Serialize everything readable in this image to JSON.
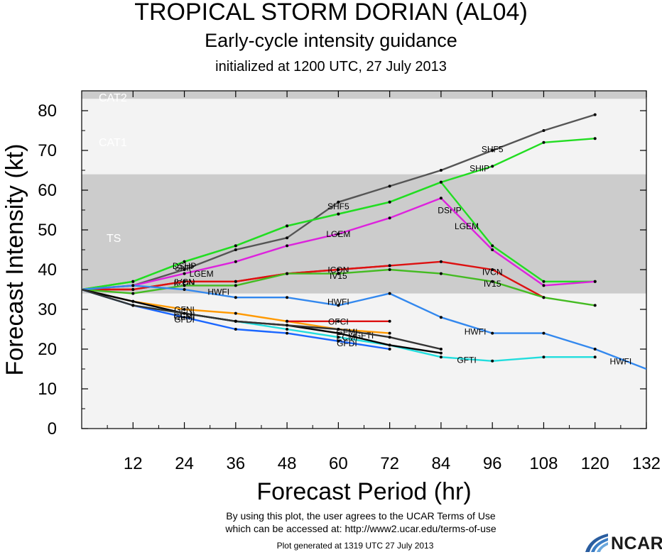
{
  "header": {
    "title": "TROPICAL STORM DORIAN (AL04)",
    "subtitle": "Early-cycle intensity guidance",
    "init": "initialized at 1200 UTC, 27 July 2013"
  },
  "footer": {
    "terms_line1": "By using this plot, the user agrees to the UCAR Terms of Use",
    "terms_line2": "which can be accessed at: http://www2.ucar.edu/terms-of-use",
    "generated": "Plot generated at 1319 UTC   27 July 2013",
    "logo_text": "NCAR"
  },
  "chart_data": {
    "type": "line",
    "title": "TROPICAL STORM DORIAN (AL04)",
    "xlabel": "Forecast Period (hr)",
    "ylabel": "Forecast Intensity (kt)",
    "xlim": [
      0,
      132
    ],
    "ylim": [
      0,
      85
    ],
    "xticks": [
      12,
      24,
      36,
      48,
      60,
      72,
      84,
      96,
      108,
      120,
      132
    ],
    "yticks": [
      0,
      10,
      20,
      30,
      40,
      50,
      60,
      70,
      80
    ],
    "bands": [
      {
        "name": "TS",
        "from": 34,
        "to": 64,
        "color": "#cccccc"
      },
      {
        "name": "CAT1",
        "from": 64,
        "to": 83,
        "color": "#f3f3f3"
      },
      {
        "name": "CAT2",
        "from": 83,
        "to": 85,
        "color": "#cccccc"
      }
    ],
    "series": [
      {
        "name": "SHF5",
        "color": "#555555",
        "x": [
          0,
          12,
          24,
          36,
          48,
          60,
          72,
          84,
          96,
          108,
          120
        ],
        "y": [
          35,
          36,
          40,
          45,
          48,
          57,
          61,
          65,
          70,
          75,
          79
        ]
      },
      {
        "name": "SHIP",
        "color": "#22dd22",
        "x": [
          0,
          12,
          24,
          36,
          48,
          60,
          72,
          84,
          96,
          108,
          120
        ],
        "y": [
          35,
          37,
          42,
          46,
          51,
          54,
          57,
          62,
          66,
          72,
          73
        ]
      },
      {
        "name": "DSHP",
        "color": "#22dd22",
        "x": [
          0,
          12,
          24,
          36,
          48,
          60,
          72,
          84,
          96,
          108,
          120
        ],
        "y": [
          35,
          37,
          42,
          46,
          51,
          54,
          57,
          62,
          46,
          37,
          37
        ]
      },
      {
        "name": "LGEM",
        "color": "#dd22dd",
        "x": [
          0,
          12,
          24,
          36,
          48,
          60,
          72,
          84,
          96,
          108,
          120
        ],
        "y": [
          35,
          36,
          39,
          42,
          46,
          49,
          53,
          58,
          45,
          36,
          37
        ]
      },
      {
        "name": "IVCN",
        "color": "#dd1111",
        "x": [
          0,
          12,
          24,
          36,
          48,
          60,
          72,
          84,
          96,
          108
        ],
        "y": [
          35,
          35,
          37,
          37,
          39,
          40,
          41,
          42,
          40,
          33
        ]
      },
      {
        "name": "ICON",
        "color": "#dd1111",
        "x": [
          0,
          12,
          24,
          36,
          48,
          60,
          72
        ],
        "y": [
          35,
          35,
          37,
          37,
          39,
          40,
          41
        ]
      },
      {
        "name": "IV15",
        "color": "#44bb22",
        "x": [
          0,
          12,
          24,
          36,
          48,
          60,
          72,
          84,
          96,
          108,
          120
        ],
        "y": [
          35,
          34,
          36,
          36,
          39,
          39,
          40,
          39,
          37,
          33,
          31
        ]
      },
      {
        "name": "HWFI",
        "color": "#3388ee",
        "x": [
          0,
          12,
          24,
          36,
          48,
          60,
          72,
          84,
          96,
          108,
          120,
          132
        ],
        "y": [
          35,
          36,
          35,
          33,
          33,
          31,
          34,
          28,
          24,
          24,
          20,
          15
        ]
      },
      {
        "name": "GFNI",
        "color": "#ff9900",
        "x": [
          0,
          12,
          24,
          36,
          48,
          60,
          72
        ],
        "y": [
          35,
          32,
          30,
          29,
          27,
          25,
          24
        ]
      },
      {
        "name": "OFCI",
        "color": "#dd1111",
        "x": [
          48,
          60,
          72
        ],
        "y": [
          27,
          27,
          27
        ]
      },
      {
        "name": "GFTI",
        "color": "#22dddd",
        "x": [
          0,
          12,
          24,
          36,
          48,
          60,
          72,
          84,
          96,
          108,
          120
        ],
        "y": [
          35,
          31,
          29,
          27,
          25,
          23,
          21,
          18,
          17,
          18,
          18
        ]
      },
      {
        "name": "GFDI",
        "color": "#1a66ff",
        "x": [
          0,
          12,
          24,
          36,
          48,
          60,
          72
        ],
        "y": [
          35,
          31,
          28,
          25,
          24,
          22,
          20
        ]
      },
      {
        "name": "ECMI",
        "color": "#000000",
        "x": [
          0,
          12,
          24,
          36,
          48,
          60,
          72,
          84
        ],
        "y": [
          35,
          32,
          29,
          27,
          26,
          24,
          21,
          19
        ]
      },
      {
        "name": "GFMI",
        "color": "#333333",
        "x": [
          0,
          12,
          24,
          36,
          48,
          60,
          72,
          84
        ],
        "y": [
          35,
          31,
          29,
          27,
          26,
          25,
          23,
          20
        ]
      }
    ],
    "band_labels": [
      "CAT2",
      "CAT1",
      "TS"
    ]
  }
}
